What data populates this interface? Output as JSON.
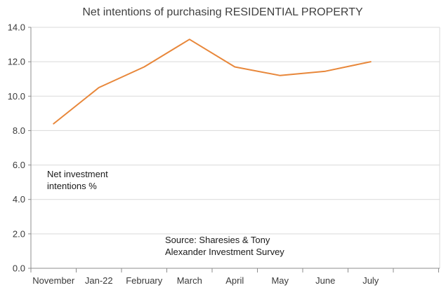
{
  "chart_data": {
    "type": "line",
    "title": "Net intentions of purchasing RESIDENTIAL PROPERTY",
    "xlabel": "",
    "ylabel": "",
    "categories": [
      "November",
      "Jan-22",
      "February",
      "March",
      "April",
      "May",
      "June",
      "July"
    ],
    "series": [
      {
        "values": [
          8.4,
          10.5,
          11.7,
          13.3,
          11.7,
          11.2,
          11.45,
          12.0
        ]
      }
    ],
    "ylim": [
      0,
      14
    ],
    "yticks": [
      "0.0",
      "2.0",
      "4.0",
      "6.0",
      "8.0",
      "10.0",
      "12.0",
      "14.0"
    ],
    "grid": "horizontal",
    "legend": "none",
    "annotations": [
      {
        "lines": [
          "Net investment",
          "intentions %"
        ]
      },
      {
        "lines": [
          "Source: Sharesies & Tony",
          "Alexander Investment Survey"
        ]
      }
    ],
    "colors": {
      "line": "#E8873A",
      "grid": "#d9d9d9",
      "axis": "#8c8c8c"
    }
  }
}
